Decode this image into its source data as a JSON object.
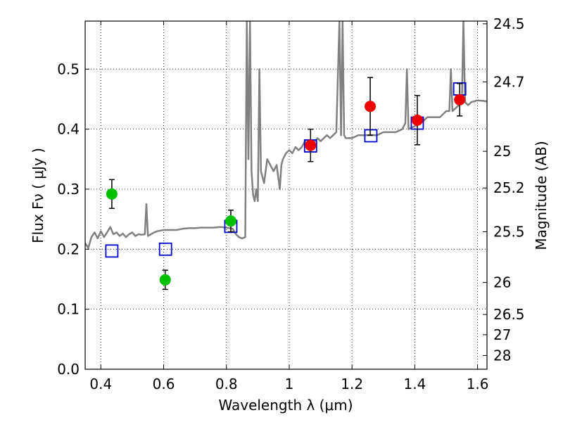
{
  "chart_data": {
    "type": "scatter",
    "xlabel": "Wavelength  λ (μm)",
    "ylabel": "Flux  Fν  ( μJy )",
    "y2label": "Magnitude (AB)",
    "xlim": [
      0.35,
      1.63
    ],
    "ylim": [
      0.0,
      0.58
    ],
    "grid": true,
    "x_ticks": [
      0.4,
      0.6,
      0.8,
      1.0,
      1.2,
      1.4,
      1.6
    ],
    "x_tick_labels": [
      "0.4",
      "0.6",
      "0.8",
      "1",
      "1.2",
      "1.4",
      "1.6"
    ],
    "y_ticks": [
      0.0,
      0.1,
      0.2,
      0.3,
      0.4,
      0.5
    ],
    "y_tick_labels": [
      "0.0",
      "0.1",
      "0.2",
      "0.3",
      "0.4",
      "0.5"
    ],
    "y2_ticks": [
      24.5,
      24.7,
      25,
      25.2,
      25.5,
      26,
      26.5,
      27,
      28
    ],
    "y2_tick_labels": [
      "24.5",
      "24.7",
      "25",
      "25.2",
      "25.5",
      "26",
      "26.5",
      "27",
      "28"
    ],
    "series": [
      {
        "marker": "circle",
        "color": "#00c000",
        "x": [
          0.435,
          0.605,
          0.814
        ],
        "y": [
          0.292,
          0.149,
          0.247
        ],
        "yerr": [
          0.024,
          0.016,
          0.018
        ]
      },
      {
        "marker": "circle",
        "color": "#ee0000",
        "x": [
          1.068,
          1.258,
          1.408,
          1.543
        ],
        "y": [
          0.373,
          0.438,
          0.415,
          0.449
        ],
        "yerr": [
          0.027,
          0.048,
          0.041,
          0.027
        ]
      },
      {
        "marker": "open-square",
        "color": "#0000cc",
        "x": [
          0.435,
          0.606,
          0.814,
          1.068,
          1.26,
          1.408,
          1.543
        ],
        "y": [
          0.197,
          0.2,
          0.238,
          0.372,
          0.389,
          0.41,
          0.467
        ]
      },
      {
        "marker": "line",
        "color": "#808080",
        "x": [
          0.35,
          0.36,
          0.37,
          0.38,
          0.39,
          0.4,
          0.41,
          0.42,
          0.43,
          0.44,
          0.45,
          0.46,
          0.47,
          0.48,
          0.49,
          0.5,
          0.51,
          0.52,
          0.53,
          0.54,
          0.545,
          0.55,
          0.56,
          0.57,
          0.58,
          0.6,
          0.62,
          0.64,
          0.66,
          0.68,
          0.7,
          0.72,
          0.74,
          0.76,
          0.78,
          0.8,
          0.82,
          0.83,
          0.84,
          0.85,
          0.86,
          0.865,
          0.87,
          0.875,
          0.88,
          0.885,
          0.89,
          0.895,
          0.9,
          0.905,
          0.91,
          0.92,
          0.93,
          0.94,
          0.95,
          0.96,
          0.97,
          0.975,
          0.98,
          0.99,
          1.0,
          1.01,
          1.02,
          1.03,
          1.04,
          1.05,
          1.06,
          1.07,
          1.08,
          1.09,
          1.1,
          1.11,
          1.12,
          1.13,
          1.14,
          1.15,
          1.16,
          1.165,
          1.17,
          1.175,
          1.18,
          1.2,
          1.22,
          1.24,
          1.26,
          1.28,
          1.3,
          1.32,
          1.34,
          1.36,
          1.37,
          1.375,
          1.38,
          1.4,
          1.42,
          1.44,
          1.46,
          1.48,
          1.5,
          1.51,
          1.515,
          1.52,
          1.53,
          1.54,
          1.55,
          1.555,
          1.56,
          1.57,
          1.58,
          1.6,
          1.62,
          1.63
        ],
        "y": [
          0.21,
          0.202,
          0.22,
          0.228,
          0.218,
          0.23,
          0.22,
          0.228,
          0.237,
          0.225,
          0.228,
          0.222,
          0.226,
          0.22,
          0.225,
          0.228,
          0.222,
          0.225,
          0.224,
          0.225,
          0.275,
          0.222,
          0.225,
          0.228,
          0.23,
          0.232,
          0.232,
          0.232,
          0.234,
          0.235,
          0.235,
          0.236,
          0.236,
          0.236,
          0.237,
          0.236,
          0.234,
          0.225,
          0.22,
          0.218,
          0.22,
          0.58,
          0.35,
          0.58,
          0.33,
          0.29,
          0.28,
          0.3,
          0.28,
          0.5,
          0.33,
          0.31,
          0.35,
          0.34,
          0.33,
          0.34,
          0.3,
          0.34,
          0.35,
          0.36,
          0.365,
          0.36,
          0.37,
          0.365,
          0.37,
          0.38,
          0.375,
          0.38,
          0.378,
          0.385,
          0.38,
          0.385,
          0.39,
          0.385,
          0.39,
          0.395,
          0.58,
          0.39,
          0.58,
          0.39,
          0.385,
          0.385,
          0.39,
          0.39,
          0.39,
          0.39,
          0.395,
          0.395,
          0.395,
          0.4,
          0.41,
          0.5,
          0.4,
          0.405,
          0.41,
          0.42,
          0.42,
          0.42,
          0.43,
          0.43,
          0.5,
          0.43,
          0.435,
          0.44,
          0.445,
          0.58,
          0.445,
          0.44,
          0.445,
          0.448,
          0.447,
          0.446
        ]
      }
    ]
  }
}
